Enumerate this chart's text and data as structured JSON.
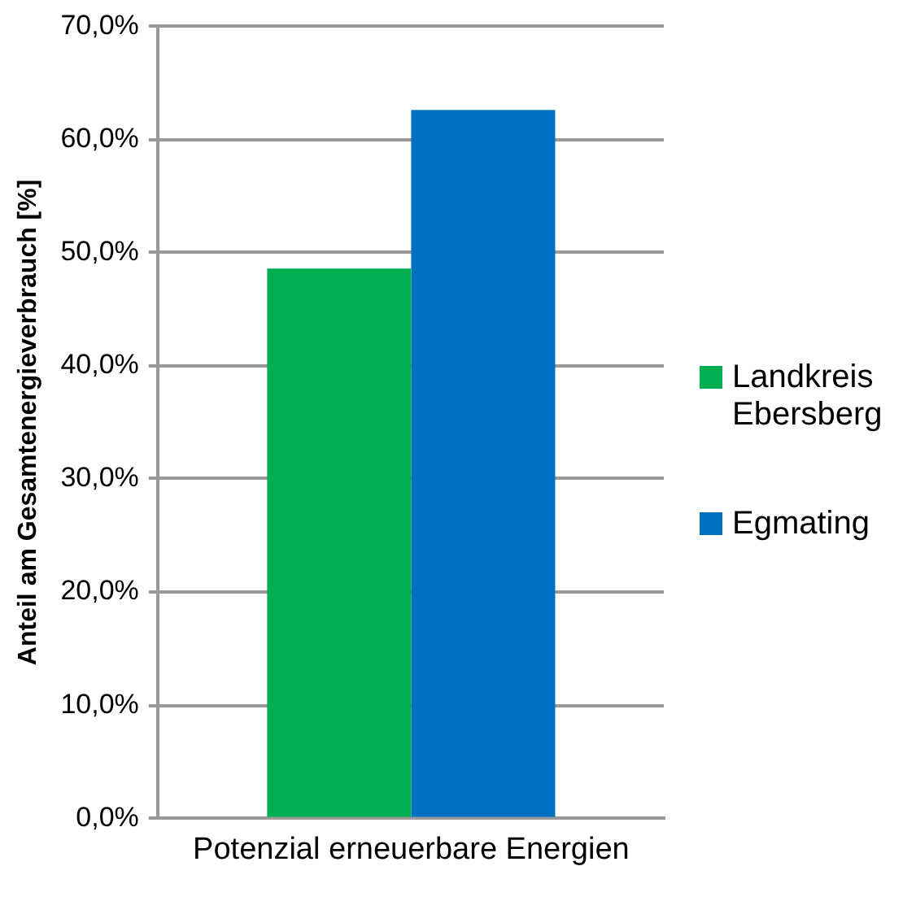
{
  "chart_data": {
    "type": "bar",
    "ylabel": "Anteil am Gesamtenergieverbrauch [%]",
    "categories": [
      "Potenzial erneuerbare Energien"
    ],
    "series": [
      {
        "name": "Landkreis Ebersberg",
        "color": "#00b050",
        "values": [
          48.6
        ]
      },
      {
        "name": "Egmating",
        "color": "#0070c0",
        "values": [
          62.6
        ]
      }
    ],
    "ylim": [
      0,
      70
    ],
    "yticks": [
      {
        "value": 0,
        "label": "0,0%"
      },
      {
        "value": 10,
        "label": "10,0%"
      },
      {
        "value": 20,
        "label": "20,0%"
      },
      {
        "value": 30,
        "label": "30,0%"
      },
      {
        "value": 40,
        "label": "40,0%"
      },
      {
        "value": 50,
        "label": "50,0%"
      },
      {
        "value": 60,
        "label": "60,0%"
      },
      {
        "value": 70,
        "label": "70,0%"
      }
    ],
    "grid": "y",
    "legend": "right"
  }
}
